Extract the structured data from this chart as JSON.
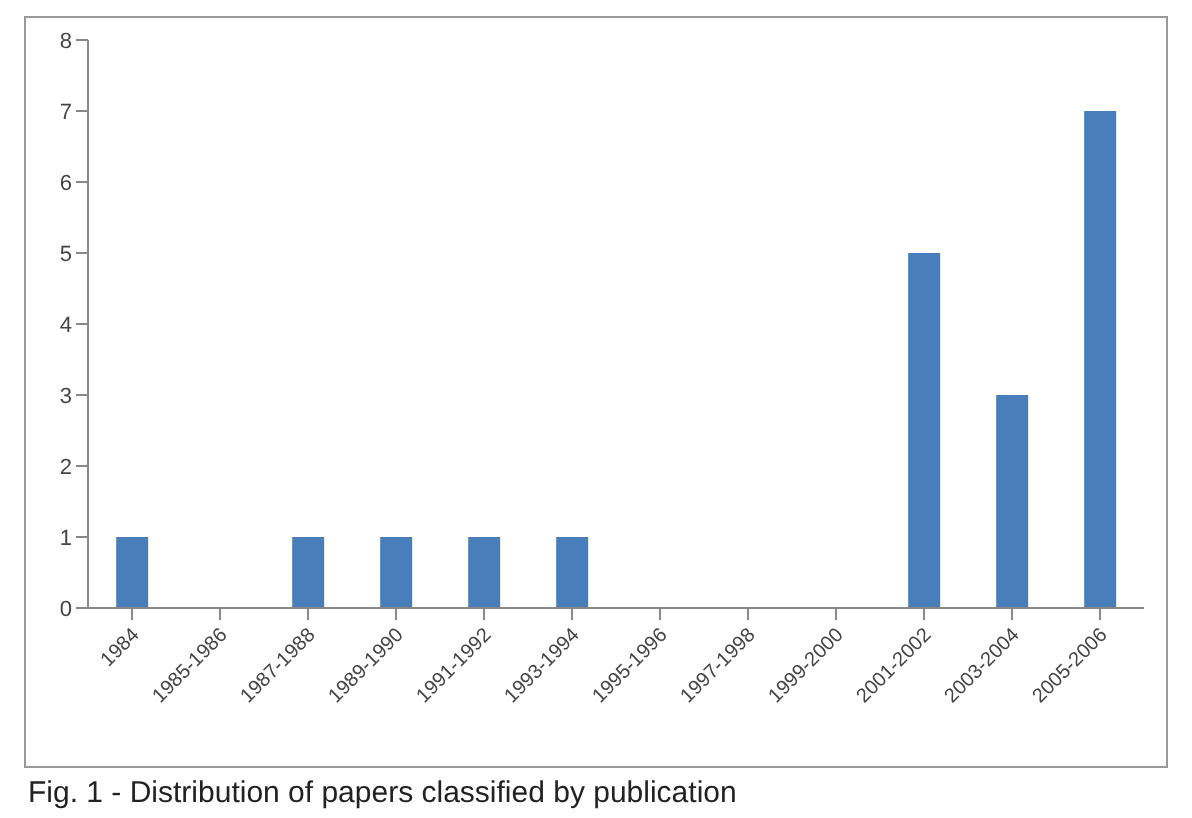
{
  "chart_data": {
    "type": "bar",
    "categories": [
      "1984",
      "1985-1986",
      "1987-1988",
      "1989-1990",
      "1991-1992",
      "1993-1994",
      "1995-1996",
      "1997-1998",
      "1999-2000",
      "2001-2002",
      "2003-2004",
      "2005-2006"
    ],
    "values": [
      1,
      0,
      1,
      1,
      1,
      1,
      0,
      0,
      0,
      5,
      3,
      7
    ],
    "color": "#4a7ebb",
    "ylim": [
      0,
      8
    ],
    "yticks": [
      0,
      1,
      2,
      3,
      4,
      5,
      6,
      7,
      8
    ],
    "annotations": [
      "Fig. 1 - Distribution of papers classified by publication"
    ]
  }
}
